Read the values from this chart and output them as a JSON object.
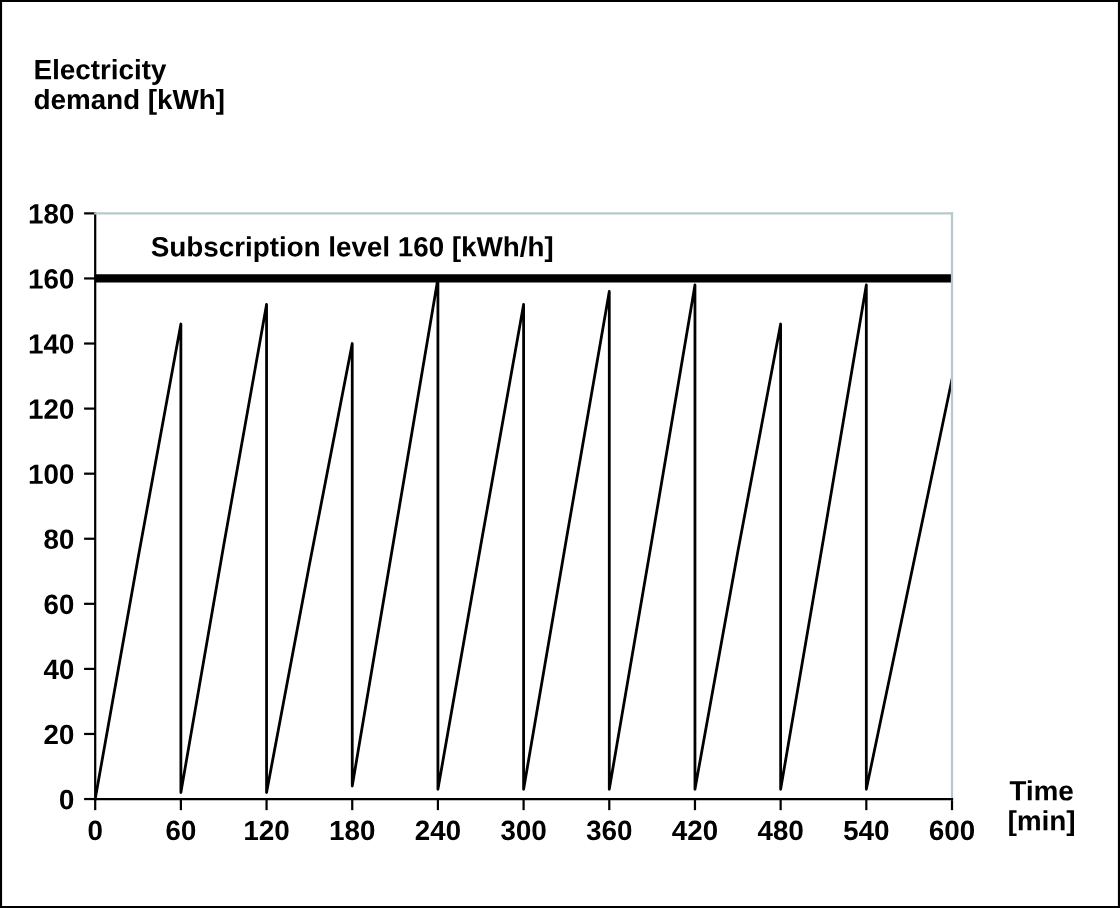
{
  "chart_data": {
    "type": "line",
    "ylabel": "Electricity\ndemand [kWh]",
    "xlabel": "Time\n[min]",
    "x": [
      0,
      30,
      60,
      60,
      90,
      120,
      120,
      150,
      180,
      180,
      210,
      240,
      240,
      270,
      300,
      300,
      330,
      360,
      360,
      390,
      420,
      420,
      450,
      480,
      480,
      510,
      540,
      540,
      570,
      600
    ],
    "series": [
      {
        "color": "#000000",
        "values": [
          0,
          74,
          146,
          2,
          78,
          152,
          2,
          72,
          140,
          4,
          82,
          160,
          3,
          78,
          152,
          3,
          80,
          156,
          3,
          80,
          158,
          3,
          76,
          146,
          3,
          80,
          158,
          3,
          66,
          129
        ]
      }
    ],
    "xlim": [
      0,
      600
    ],
    "ylim": [
      0,
      180
    ],
    "xticks": [
      0,
      60,
      120,
      180,
      240,
      300,
      360,
      420,
      480,
      540,
      600
    ],
    "yticks": [
      0,
      20,
      40,
      60,
      80,
      100,
      120,
      140,
      160,
      180
    ],
    "ref_lines": [
      {
        "axis": "y",
        "value": 160,
        "label": "Subscription level 160 [kWh/h]",
        "color": "#000000"
      }
    ],
    "grid": false,
    "legend": false,
    "marker": "none",
    "line_style": "solid"
  }
}
